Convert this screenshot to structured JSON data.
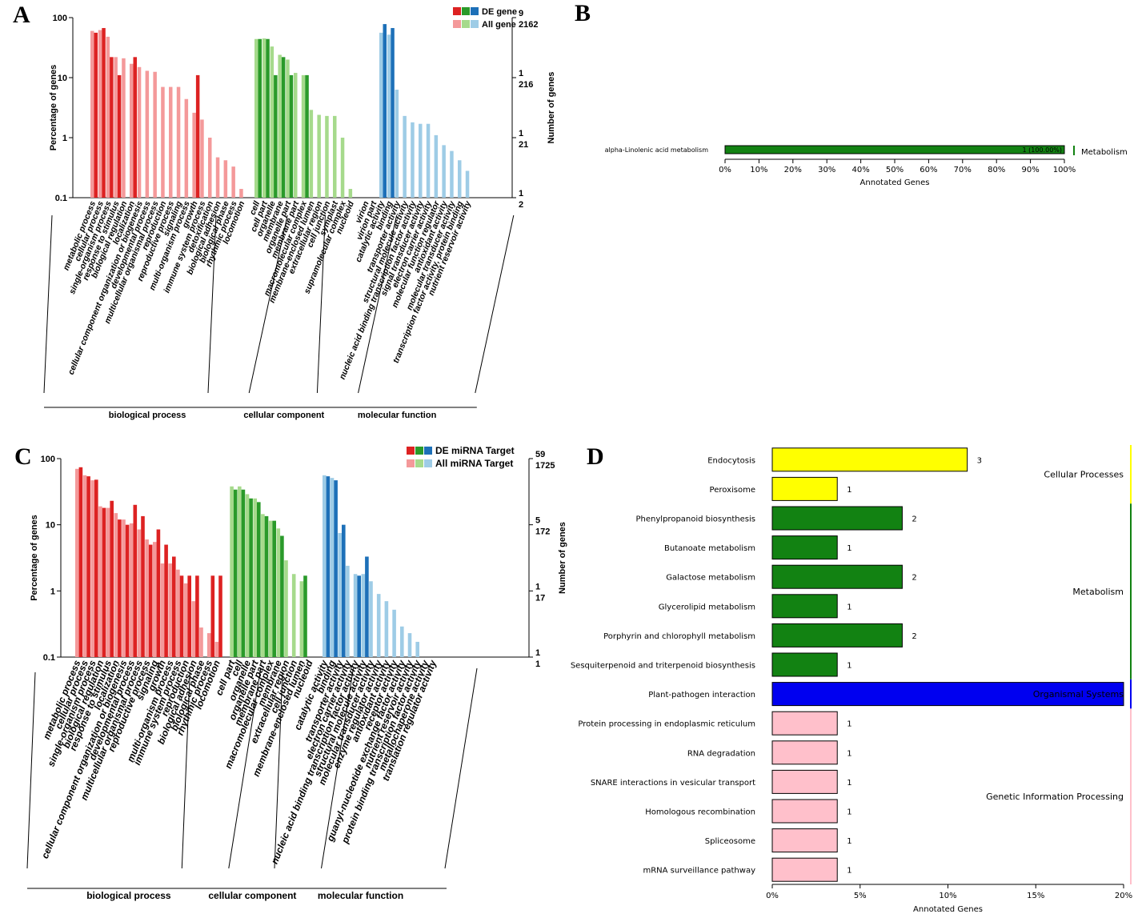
{
  "panels": {
    "a": "A",
    "b": "B",
    "c": "C",
    "d": "D"
  },
  "colors": {
    "bp_de": "#dd2222",
    "bp_all": "#f4999a",
    "cc_de": "#2a9a2a",
    "cc_all": "#a6da8c",
    "mf_de": "#1d70b8",
    "mf_all": "#9ecce6",
    "kegg_cellular": "#ffff00",
    "kegg_metabolism": "#128212",
    "kegg_organismal": "#0000f0",
    "kegg_genetic": "#ffc0cb"
  },
  "chart_data": [
    {
      "id": "A",
      "type": "bar",
      "scale": "log",
      "ylabel": "Percentage of genes",
      "ylabel_right": "Number of genes",
      "yticks": [
        "100",
        "10",
        "1",
        "0.1"
      ],
      "ylim": [
        0.1,
        100
      ],
      "right_ticks": [
        {
          "top": "9",
          "bottom": "2162",
          "value": 100
        },
        {
          "top": "1",
          "bottom": "216",
          "value": 10
        },
        {
          "top": "1",
          "bottom": "21",
          "value": 1
        },
        {
          "top": "1",
          "bottom": "2",
          "value": 0.1
        }
      ],
      "right_top_color": "#000000",
      "legend": [
        {
          "label": "DE gene",
          "colors": [
            "#dd2222",
            "#2a9a2a",
            "#1d70b8"
          ]
        },
        {
          "label": "All gene",
          "colors": [
            "#f4999a",
            "#a6da8c",
            "#9ecce6"
          ]
        }
      ],
      "groups": [
        {
          "name": "biological process",
          "key": "bp",
          "categories": [
            "metabolic process",
            "cellular process",
            "single-organism process",
            "response to stimulus",
            "biological regulation",
            "localization",
            "cellular component organization or biogenesis",
            "developmental process",
            "multicellular organismal process",
            "reproduction",
            "reproductive process",
            "signaling",
            "multi-organism process",
            "growth",
            "immune system process",
            "detoxification",
            "biological adhesion",
            "biological phase",
            "rhythmic process",
            "locomotion"
          ],
          "all": [
            60,
            62,
            48,
            22,
            21,
            17,
            15,
            13,
            12.5,
            7,
            7,
            7,
            4.4,
            2.6,
            2.0,
            1.0,
            0.47,
            0.42,
            0.33,
            0.14
          ],
          "de": [
            56,
            67,
            22,
            11,
            null,
            22,
            null,
            null,
            null,
            null,
            null,
            null,
            null,
            11,
            null,
            null,
            null,
            null,
            null,
            null
          ]
        },
        {
          "name": "cellular component",
          "key": "cc",
          "categories": [
            "cell",
            "cell part",
            "organelle",
            "membrane",
            "organelle part",
            "membrane part",
            "macromolecular complex",
            "membrane-enclosed lumen",
            "extracellular region",
            "cell junction",
            "symplast",
            "supramolecular complex",
            "nucleoid"
          ],
          "all": [
            44,
            45,
            33,
            24,
            20,
            12,
            11,
            2.9,
            2.4,
            2.3,
            2.3,
            1.0,
            0.14
          ],
          "de": [
            44,
            44,
            11,
            22,
            11,
            null,
            11,
            null,
            null,
            null,
            null,
            null,
            null
          ]
        },
        {
          "name": "molecular function",
          "key": "mf",
          "categories": [
            "virion",
            "virion part",
            "catalytic activity",
            "binding",
            "transporter activity",
            "structural molecule activity",
            "nucleic acid binding transcription factor activity",
            "signal transducer activity",
            "electron carrier activity",
            "molecular function regulator",
            "antioxidant activity",
            "molecular transducer activity",
            "transcription factor activity, protein binding",
            "nutrient reservoir activity"
          ],
          "all": [
            null,
            null,
            56,
            52,
            6.3,
            2.3,
            1.8,
            1.7,
            1.7,
            1.1,
            0.75,
            0.6,
            0.42,
            0.28
          ],
          "de": [
            null,
            null,
            78,
            67,
            null,
            null,
            null,
            null,
            null,
            null,
            null,
            null,
            null,
            null
          ]
        }
      ]
    },
    {
      "id": "B",
      "type": "bar",
      "orientation": "horizontal",
      "xlabel": "Annotated Genes",
      "xticks": [
        "0%",
        "10%",
        "20%",
        "30%",
        "40%",
        "50%",
        "60%",
        "70%",
        "80%",
        "90%",
        "100%"
      ],
      "xlim": [
        0,
        100
      ],
      "categories": [
        "alpha-Linolenic acid metabolism"
      ],
      "values": [
        100
      ],
      "value_labels": [
        "1 (100.00%)"
      ],
      "group": "Metabolism"
    },
    {
      "id": "C",
      "type": "bar",
      "scale": "log",
      "ylabel": "Percentage of genes",
      "ylabel_right": "Number of genes",
      "yticks": [
        "100",
        "10",
        "1",
        "0.1"
      ],
      "ylim": [
        0.1,
        100
      ],
      "right_ticks": [
        {
          "top": "59",
          "bottom": "1725",
          "value": 100
        },
        {
          "top": "5",
          "bottom": "172",
          "value": 10
        },
        {
          "top": "1",
          "bottom": "17",
          "value": 1
        },
        {
          "top": "1",
          "bottom": "1",
          "value": 0.1
        }
      ],
      "right_top_color": "#1010c8",
      "legend": [
        {
          "label": "DE miRNA Target",
          "colors": [
            "#dd2222",
            "#2a9a2a",
            "#1d70b8"
          ],
          "color": "#1010c8"
        },
        {
          "label": "All miRNA Target",
          "colors": [
            "#f4999a",
            "#a6da8c",
            "#9ecce6"
          ]
        }
      ],
      "groups": [
        {
          "name": "biological process",
          "key": "bp",
          "categories": [
            "metabolic process",
            "cellular process",
            "single-organism process",
            "biological regulation",
            "response to stimulus",
            "localization",
            "cellular component organization or biogenesis",
            "developmental process",
            "multicellular organismal process",
            "reproductive process",
            "signaling",
            "growth",
            "multi-organism process",
            "immune system process",
            "reproduction",
            "biological adhesion",
            "biological phase",
            "rhythmic process",
            "locomotion"
          ],
          "all": [
            70,
            56,
            47,
            19,
            18,
            15,
            12,
            10.5,
            8.5,
            6,
            5.5,
            2.6,
            2.6,
            2.1,
            1.3,
            0.7,
            0.28,
            0.23,
            0.17
          ],
          "de": [
            74,
            54,
            48,
            18,
            23,
            12,
            10,
            20,
            13.5,
            5,
            8.5,
            5,
            3.3,
            1.7,
            1.7,
            1.7,
            null,
            1.7,
            1.7
          ]
        },
        {
          "name": "cellular component",
          "key": "cc",
          "categories": [
            "cell part",
            "cell",
            "organelle",
            "organelle part",
            "membrane part",
            "macromolecular complex",
            "membrane",
            "extracellular region",
            "cell junction",
            "membrane-enclosed lumen",
            "nucleoid"
          ],
          "all": [
            38,
            38,
            29,
            25,
            14.5,
            11.5,
            8.8,
            2.9,
            1.8,
            1.4,
            null
          ],
          "de": [
            34,
            34,
            25,
            22,
            13.5,
            11.5,
            6.8,
            null,
            null,
            1.7,
            null
          ]
        },
        {
          "name": "molecular function",
          "key": "mf",
          "categories": [
            "catalytic activity",
            "binding",
            "transporter activity",
            "electron carrier activity",
            "nucleic acid binding transcription factor activity",
            "structural molecule activity",
            "molecular transducer activity",
            "enzyme regulator activity",
            "antioxidant activity",
            "receptor activity",
            "guanyl-nucleotide exchange factor activity",
            "nutrient reservoir activity",
            "protein binding transcription factor activity",
            "metallochaperone activity",
            "translation regulator activity"
          ],
          "all": [
            56,
            51,
            7.5,
            2.4,
            1.8,
            1.8,
            1.4,
            0.9,
            0.7,
            0.52,
            0.29,
            0.23,
            0.17,
            null,
            null
          ],
          "de": [
            54,
            47,
            10,
            null,
            1.7,
            3.3,
            null,
            null,
            null,
            null,
            null,
            null,
            null,
            null,
            null
          ]
        }
      ]
    },
    {
      "id": "D",
      "type": "bar",
      "orientation": "horizontal",
      "xlabel": "Annotated Genes",
      "xticks": [
        "0%",
        "5%",
        "10%",
        "15%",
        "20%"
      ],
      "xlim": [
        0,
        20
      ],
      "rows": [
        {
          "name": "Endocytosis",
          "value": 11.1,
          "count": "3",
          "group": "cellular"
        },
        {
          "name": "Peroxisome",
          "value": 3.7,
          "count": "1",
          "group": "cellular"
        },
        {
          "name": "Phenylpropanoid biosynthesis",
          "value": 7.4,
          "count": "2",
          "group": "metabolism"
        },
        {
          "name": "Butanoate metabolism",
          "value": 3.7,
          "count": "1",
          "group": "metabolism"
        },
        {
          "name": "Galactose metabolism",
          "value": 7.4,
          "count": "2",
          "group": "metabolism"
        },
        {
          "name": "Glycerolipid metabolism",
          "value": 3.7,
          "count": "1",
          "group": "metabolism"
        },
        {
          "name": "Porphyrin and chlorophyll metabolism",
          "value": 7.4,
          "count": "2",
          "group": "metabolism"
        },
        {
          "name": "Sesquiterpenoid and triterpenoid biosynthesis",
          "value": 3.7,
          "count": "1",
          "group": "metabolism"
        },
        {
          "name": "Plant-pathogen interaction",
          "value": 20,
          "count": "",
          "group": "organismal"
        },
        {
          "name": "Protein processing in endoplasmic reticulum",
          "value": 3.7,
          "count": "1",
          "group": "genetic"
        },
        {
          "name": "RNA degradation",
          "value": 3.7,
          "count": "1",
          "group": "genetic"
        },
        {
          "name": "SNARE interactions in vesicular transport",
          "value": 3.7,
          "count": "1",
          "group": "genetic"
        },
        {
          "name": "Homologous recombination",
          "value": 3.7,
          "count": "1",
          "group": "genetic"
        },
        {
          "name": "Spliceosome",
          "value": 3.7,
          "count": "1",
          "group": "genetic"
        },
        {
          "name": "mRNA surveillance pathway",
          "value": 3.7,
          "count": "1",
          "group": "genetic"
        }
      ],
      "groups": [
        {
          "key": "cellular",
          "label": "Cellular Processes"
        },
        {
          "key": "metabolism",
          "label": "Metabolism"
        },
        {
          "key": "organismal",
          "label": "Organismal Systems"
        },
        {
          "key": "genetic",
          "label": "Genetic Information Processing"
        }
      ]
    }
  ]
}
